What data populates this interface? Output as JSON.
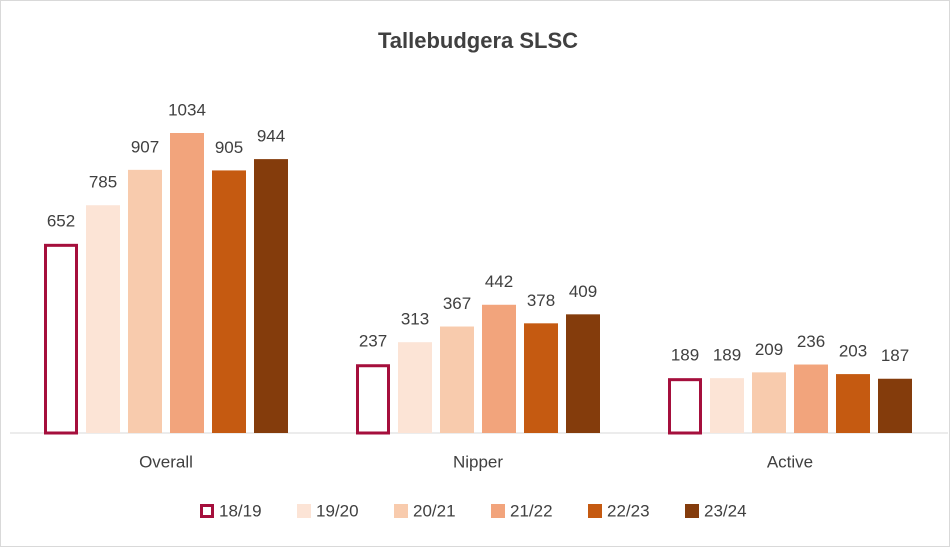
{
  "chart_data": {
    "type": "bar",
    "title": "Tallebudgera SLSC",
    "categories": [
      "Overall",
      "Nipper",
      "Active"
    ],
    "series": [
      {
        "name": "18/19",
        "color": "#a50f3c",
        "outline": true,
        "values": [
          652,
          237,
          189
        ]
      },
      {
        "name": "19/20",
        "color": "#fce4d6",
        "values": [
          785,
          313,
          189
        ]
      },
      {
        "name": "20/21",
        "color": "#f8cbad",
        "values": [
          907,
          367,
          209
        ]
      },
      {
        "name": "21/22",
        "color": "#f2a47c",
        "values": [
          1034,
          442,
          236
        ]
      },
      {
        "name": "22/23",
        "color": "#c55a11",
        "values": [
          905,
          378,
          203
        ]
      },
      {
        "name": "23/24",
        "color": "#843c0c",
        "values": [
          944,
          409,
          187
        ]
      }
    ],
    "legend": "bottom"
  }
}
